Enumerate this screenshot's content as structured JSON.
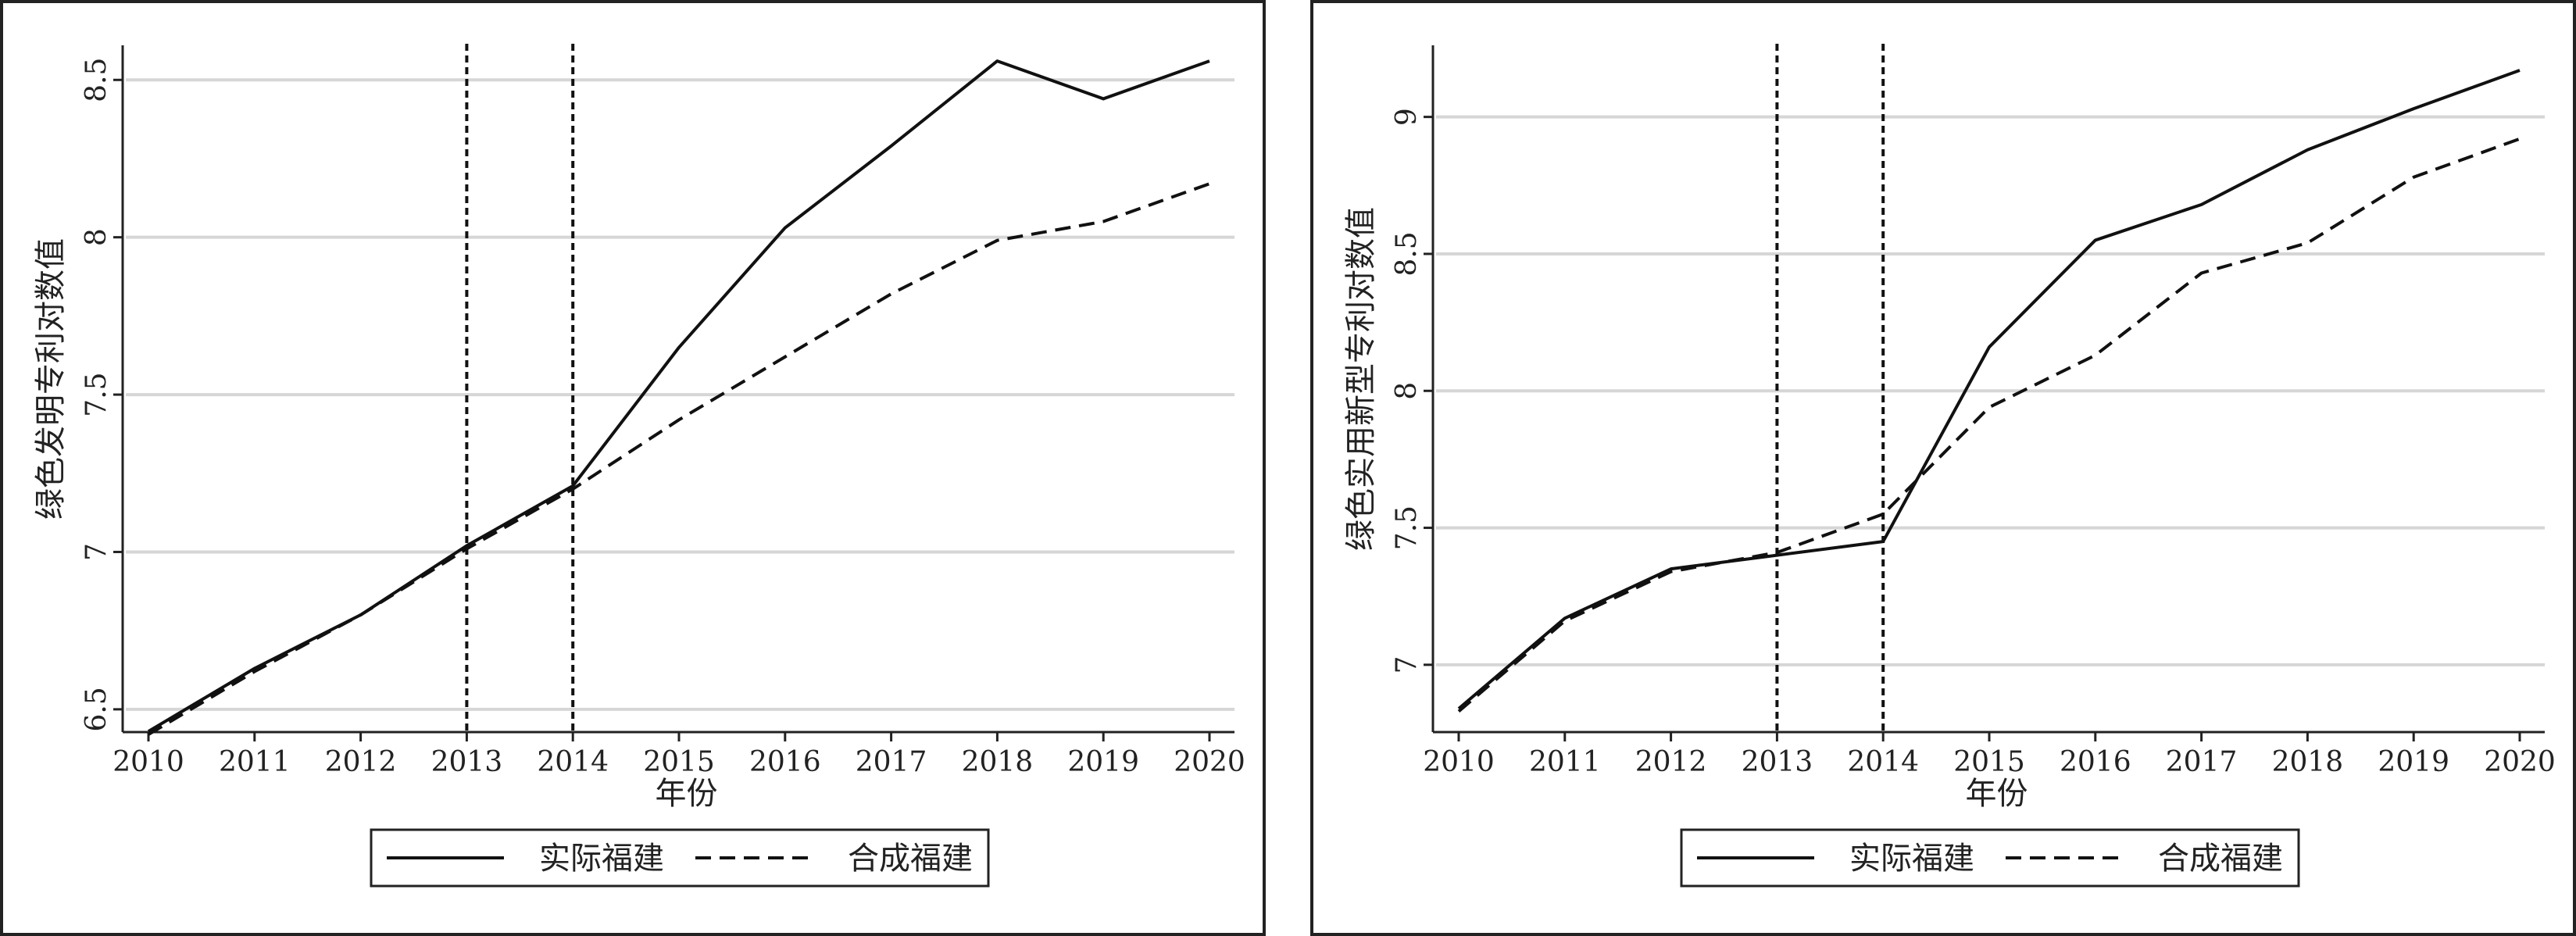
{
  "chart_data": [
    {
      "type": "line",
      "title": "",
      "xlabel": "年份",
      "ylabel": "绿色发明专利对数值",
      "x": [
        2010,
        2011,
        2012,
        2013,
        2014,
        2015,
        2016,
        2017,
        2018,
        2019,
        2020
      ],
      "xlim": [
        2010,
        2020
      ],
      "ylim": [
        6.45,
        8.6
      ],
      "yticks": [
        6.5,
        7,
        7.5,
        8,
        8.5
      ],
      "ytick_labels": [
        "6.5",
        "7",
        "7.5",
        "8",
        "8.5"
      ],
      "grid": true,
      "vlines": [
        2013,
        2014
      ],
      "legend_position": "bottom",
      "series": [
        {
          "name": "实际福建",
          "style": "solid",
          "values": [
            6.43,
            6.63,
            6.8,
            7.02,
            7.21,
            7.65,
            8.03,
            8.29,
            8.56,
            8.44,
            8.56
          ]
        },
        {
          "name": "合成福建",
          "style": "dashed",
          "values": [
            6.42,
            6.62,
            6.8,
            7.01,
            7.2,
            7.42,
            7.62,
            7.82,
            7.99,
            8.05,
            8.17
          ]
        }
      ]
    },
    {
      "type": "line",
      "title": "",
      "xlabel": "年份",
      "ylabel": "绿色实用新型专利对数值",
      "x": [
        2010,
        2011,
        2012,
        2013,
        2014,
        2015,
        2016,
        2017,
        2018,
        2019,
        2020
      ],
      "xlim": [
        2010,
        2020
      ],
      "ylim": [
        6.78,
        9.25
      ],
      "yticks": [
        7,
        7.5,
        8,
        8.5,
        9
      ],
      "ytick_labels": [
        "7",
        "7.5",
        "8",
        "8.5",
        "9"
      ],
      "grid": true,
      "vlines": [
        2013,
        2014
      ],
      "legend_position": "bottom",
      "series": [
        {
          "name": "实际福建",
          "style": "solid",
          "values": [
            6.84,
            7.17,
            7.35,
            7.4,
            7.45,
            8.16,
            8.55,
            8.68,
            8.88,
            9.03,
            9.17
          ]
        },
        {
          "name": "合成福建",
          "style": "dashed",
          "values": [
            6.83,
            7.16,
            7.34,
            7.41,
            7.55,
            7.94,
            8.13,
            8.43,
            8.54,
            8.78,
            8.92
          ]
        }
      ]
    }
  ]
}
